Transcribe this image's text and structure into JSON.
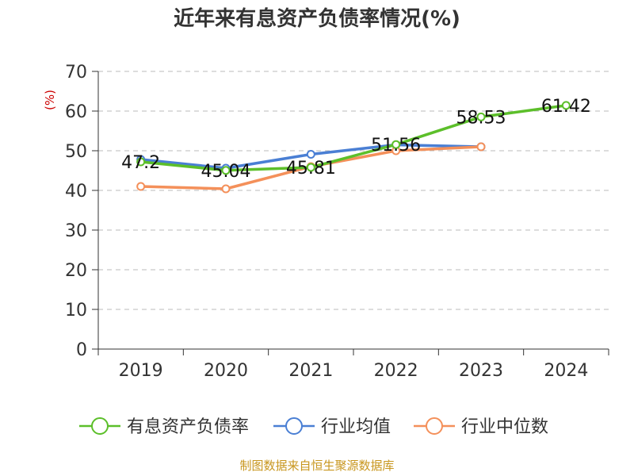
{
  "chart_data": {
    "type": "line",
    "title": "近年来有息资产负债率情况(%)",
    "ylabel": "(%)",
    "xlabel": "",
    "categories": [
      "2019",
      "2020",
      "2021",
      "2022",
      "2023",
      "2024"
    ],
    "ylim": [
      0,
      70
    ],
    "yticks": [
      0,
      10,
      20,
      30,
      40,
      50,
      60,
      70
    ],
    "grid": true,
    "legend_position": "bottom",
    "series": [
      {
        "name": "有息资产负债率",
        "color": "#5cbf2a",
        "values": [
          47.2,
          45.04,
          45.81,
          51.56,
          58.53,
          61.42
        ],
        "labels": [
          "47.2",
          "45.04",
          "45.81",
          "51.56",
          "58.53",
          "61.42"
        ]
      },
      {
        "name": "行业均值",
        "color": "#4a7fd4",
        "values": [
          47.8,
          45.6,
          49.1,
          51.5,
          51.0,
          null
        ]
      },
      {
        "name": "行业中位数",
        "color": "#f4905a",
        "values": [
          41.0,
          40.4,
          46.0,
          50.0,
          51.0,
          null
        ]
      }
    ]
  },
  "source_note": "制图数据来自恒生聚源数据库"
}
